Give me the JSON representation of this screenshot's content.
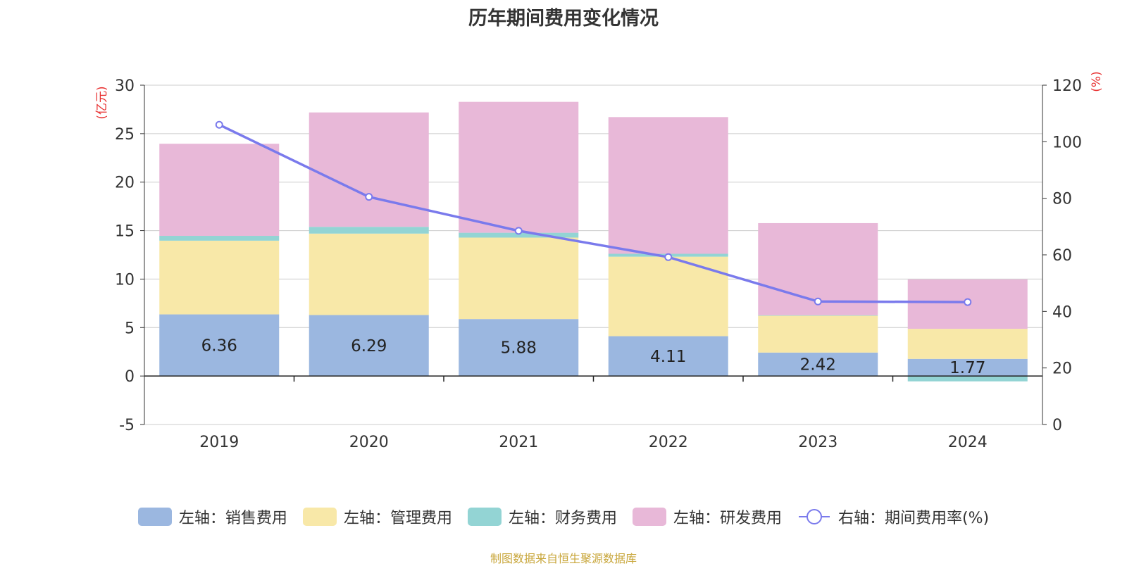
{
  "source": "制图数据来自恒生聚源数据库",
  "colors": {
    "sales": "#9bb7e0",
    "admin": "#f8e8a8",
    "finance": "#93d4d4",
    "rnd": "#e8b8d8",
    "rate_line": "#7a7aec",
    "axis_unit": "#e83030",
    "grid": "#cccccc",
    "axis_text": "#333333"
  },
  "chart_data": {
    "type": "bar",
    "title": "历年期间费用变化情况",
    "categories": [
      "2019",
      "2020",
      "2021",
      "2022",
      "2023",
      "2024"
    ],
    "left_axis": {
      "unit": "(亿元)",
      "ylim": [
        -5,
        30
      ],
      "ticks": [
        "-5",
        "0",
        "5",
        "10",
        "15",
        "20",
        "25",
        "30"
      ]
    },
    "right_axis": {
      "unit": "(%)",
      "ylim": [
        0,
        120
      ],
      "ticks": [
        "0",
        "20",
        "40",
        "60",
        "80",
        "100",
        "120"
      ]
    },
    "series": [
      {
        "name": "左轴：销售费用",
        "key": "sales",
        "values": [
          6.36,
          6.29,
          5.88,
          4.11,
          2.42,
          1.77
        ],
        "data_labels": [
          "6.36",
          "6.29",
          "5.88",
          "4.11",
          "2.42",
          "1.77"
        ]
      },
      {
        "name": "左轴：管理费用",
        "key": "admin",
        "values": [
          7.6,
          8.4,
          8.4,
          8.2,
          3.8,
          3.1
        ]
      },
      {
        "name": "左轴：财务费用",
        "key": "finance",
        "values": [
          0.5,
          0.7,
          0.5,
          0.3,
          0.05,
          -0.55
        ]
      },
      {
        "name": "左轴：研发费用",
        "key": "rnd",
        "values": [
          9.5,
          11.8,
          13.5,
          14.1,
          9.5,
          5.1
        ]
      }
    ],
    "line_series": {
      "name": "右轴：期间费用率(%)",
      "key": "rate_line",
      "values": [
        106,
        80.5,
        68.5,
        59.2,
        43.5,
        43.3
      ]
    },
    "grid": true,
    "legend_position": "bottom"
  }
}
